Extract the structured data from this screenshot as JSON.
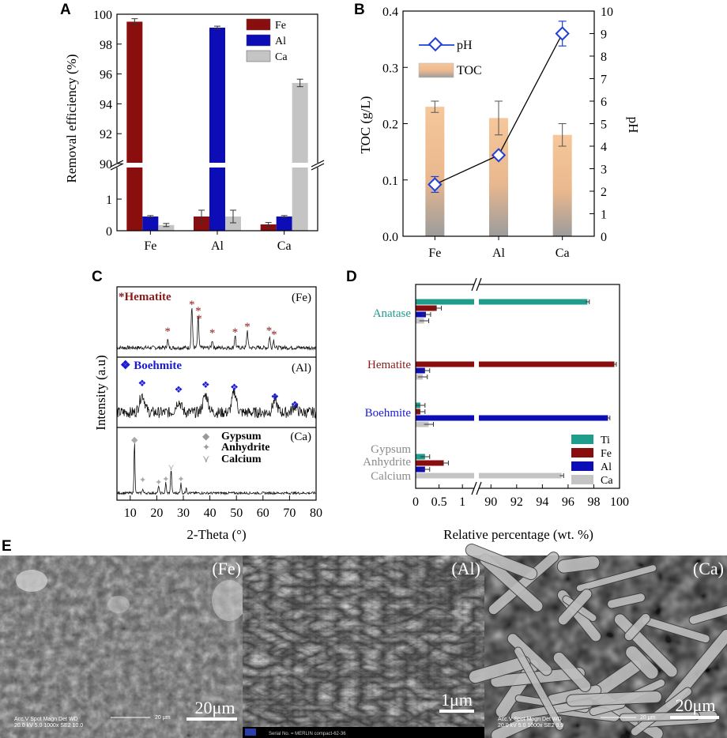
{
  "panels": {
    "a": "A",
    "b": "B",
    "c": "C",
    "d": "D",
    "e": "E"
  },
  "colors": {
    "fe": "#8b0e0e",
    "al": "#0d0db8",
    "ca": "#c4c4c4",
    "ti": "#1e9c8c",
    "toc_top": "#f6c79b",
    "toc_bottom": "#9a9a9a",
    "ph": "#1f3fd6",
    "hematite": "#8b1a1a",
    "boehmite": "#1a1ad6",
    "gypsum_grey": "#8a8a8a"
  },
  "chart_a": {
    "type": "bar",
    "ylabel": "Removal efficiency (%)",
    "categories": [
      "Fe",
      "Al",
      "Ca"
    ],
    "upper_ticks": [
      "100",
      "98",
      "96",
      "94",
      "92",
      "90"
    ],
    "lower_ticks": [
      "1",
      "0"
    ],
    "series": [
      {
        "name": "Fe",
        "values": [
          99.5,
          0.45,
          0.2
        ],
        "errors": [
          0.2,
          0.2,
          0.06
        ]
      },
      {
        "name": "Al",
        "values": [
          0.45,
          99.1,
          0.45
        ],
        "errors": [
          0.03,
          0.1,
          0.03
        ]
      },
      {
        "name": "Ca",
        "values": [
          0.18,
          0.45,
          95.4
        ],
        "errors": [
          0.05,
          0.2,
          0.25
        ]
      }
    ],
    "legend": [
      "Fe",
      "Al",
      "Ca"
    ]
  },
  "chart_b": {
    "type": "bar+line",
    "ylabel_left": "TOC (g/L)",
    "ylabel_right": "pH",
    "categories": [
      "Fe",
      "Al",
      "Ca"
    ],
    "left_ticks": [
      "0.0",
      "0.1",
      "0.2",
      "0.3",
      "0.4"
    ],
    "right_ticks": [
      "0",
      "1",
      "2",
      "3",
      "4",
      "5",
      "6",
      "7",
      "8",
      "9",
      "10"
    ],
    "toc": {
      "name": "TOC",
      "values": [
        0.23,
        0.21,
        0.18
      ],
      "errors": [
        0.01,
        0.03,
        0.02
      ]
    },
    "ph": {
      "name": "pH",
      "values": [
        2.3,
        3.6,
        9.0
      ],
      "errors": [
        0.35,
        0.1,
        0.55
      ]
    }
  },
  "chart_c": {
    "type": "xrd",
    "xlabel": "2-Theta (°)",
    "ylabel": "Intensity (a.u)",
    "x_ticks": [
      "10",
      "20",
      "30",
      "40",
      "50",
      "60",
      "70",
      "80"
    ],
    "fe": {
      "tag": "(Fe)",
      "phase": "Hematite",
      "marker": "*"
    },
    "al": {
      "tag": "(Al)",
      "phase": "Boehmite",
      "marker": "❖"
    },
    "ca": {
      "tag": "(Ca)",
      "legend": [
        {
          "symbol": "◆",
          "label": "Gypsum"
        },
        {
          "symbol": "✦",
          "label": "Anhydrite"
        },
        {
          "symbol": "⋎",
          "label": "Calcium"
        }
      ]
    }
  },
  "chart_d": {
    "type": "hbar",
    "xlabel": "Relative percentage (wt. %)",
    "lower_ticks": [
      "0",
      "0.5",
      "1"
    ],
    "upper_ticks": [
      "90",
      "92",
      "94",
      "96",
      "98",
      "100"
    ],
    "categories": [
      "Anatase",
      "Hematite",
      "Boehmite",
      "Gypsum",
      "Anhydrite",
      "Calcium"
    ],
    "groups": [
      {
        "name": "Anatase",
        "values": {
          "Ti": 97.5,
          "Fe": 0.45,
          "Al": 0.22,
          "Ca": 0.18
        }
      },
      {
        "name": "Hematite",
        "values": {
          "Ti": 0.0,
          "Fe": 99.6,
          "Al": 0.2,
          "Ca": 0.15
        }
      },
      {
        "name": "Boehmite",
        "values": {
          "Ti": 0.1,
          "Fe": 0.1,
          "Al": 99.1,
          "Ca": 0.28
        }
      },
      {
        "name": "Gypsum / Anhydrite / Calcium",
        "values": {
          "Ti": 0.2,
          "Fe": 0.6,
          "Al": 0.2,
          "Ca": 95.5
        }
      }
    ],
    "legend": [
      "Ti",
      "Fe",
      "Al",
      "Ca"
    ]
  },
  "sem": {
    "fe": {
      "tag": "(Fe)",
      "scale": "20μm",
      "info_line1": "Acc.V  Spot Magn   Det  WD",
      "info_line2": "20.0 kV 5.0  1000x   SE2  10.0",
      "bar_label": "20 μm"
    },
    "al": {
      "tag": "(Al)",
      "scale": "1μm",
      "info": "Serial No. = MERLIN compact-62-36"
    },
    "ca": {
      "tag": "(Ca)",
      "scale": "20μm",
      "info_line1": "Acc.V  Spot Magn   Det  WD",
      "info_line2": "20.0 kV 5.0  1000x   SE2  9.9",
      "bar_label": "20 μm"
    }
  }
}
